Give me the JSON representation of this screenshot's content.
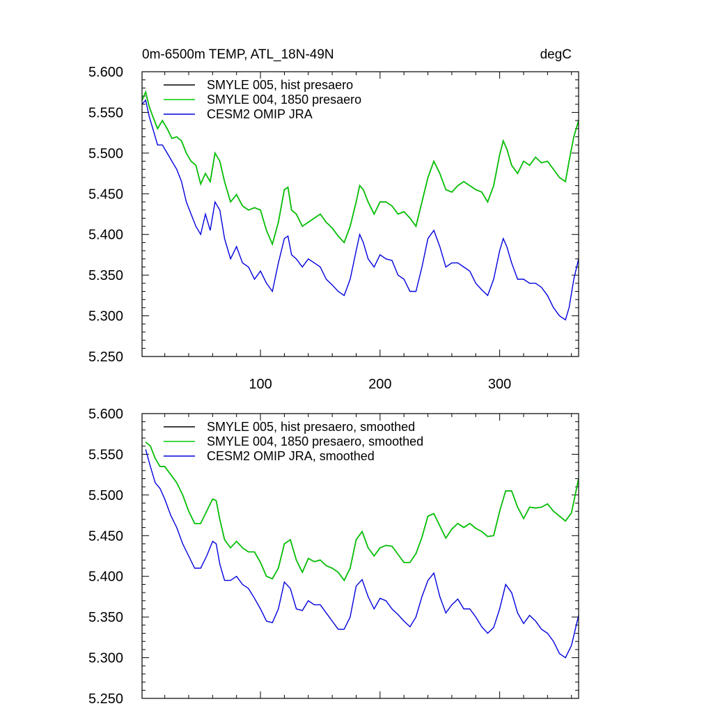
{
  "colors": {
    "hist": "#000000",
    "presaero1850": "#00cc00",
    "omip": "#0000dd"
  },
  "chart_data": [
    {
      "type": "line",
      "title": "0m-6500m TEMP, ATL_18N-49N",
      "units": "degC",
      "xlim": [
        1,
        366
      ],
      "ylim": [
        5.25,
        5.6
      ],
      "xticks": [
        100,
        200,
        300
      ],
      "xtick_labels": [
        "100",
        "200",
        "300"
      ],
      "yticks": [
        5.25,
        5.3,
        5.35,
        5.4,
        5.45,
        5.5,
        5.55,
        5.6
      ],
      "ytick_labels": [
        "5.250",
        "5.300",
        "5.350",
        "5.400",
        "5.450",
        "5.500",
        "5.550",
        "5.600"
      ],
      "legend_position": "top-left",
      "series": [
        {
          "name": "SMYLE 005, hist presaero",
          "color": "#000000",
          "x": [
            1,
            4,
            7,
            10,
            14,
            18,
            22,
            26,
            30,
            34,
            38,
            42,
            46,
            50,
            54,
            58,
            62,
            66,
            70,
            75,
            80,
            85,
            90,
            95,
            100,
            105,
            110,
            115,
            120,
            123,
            126,
            130,
            135,
            140,
            145,
            150,
            155,
            160,
            165,
            170,
            175,
            180,
            183,
            186,
            190,
            195,
            200,
            205,
            210,
            215,
            220,
            225,
            230,
            235,
            240,
            245,
            250,
            255,
            260,
            265,
            270,
            275,
            280,
            285,
            290,
            295,
            300,
            303,
            306,
            310,
            315,
            320,
            325,
            330,
            335,
            340,
            345,
            350,
            355,
            358,
            362,
            366
          ],
          "values": [
            5.565,
            5.575,
            5.557,
            5.545,
            5.53,
            5.54,
            5.53,
            5.518,
            5.52,
            5.515,
            5.5,
            5.49,
            5.485,
            5.462,
            5.475,
            5.465,
            5.5,
            5.49,
            5.465,
            5.44,
            5.449,
            5.435,
            5.43,
            5.433,
            5.43,
            5.405,
            5.388,
            5.415,
            5.455,
            5.458,
            5.43,
            5.425,
            5.41,
            5.415,
            5.42,
            5.425,
            5.415,
            5.408,
            5.398,
            5.39,
            5.41,
            5.44,
            5.46,
            5.455,
            5.44,
            5.425,
            5.44,
            5.44,
            5.435,
            5.425,
            5.428,
            5.42,
            5.41,
            5.44,
            5.47,
            5.49,
            5.475,
            5.455,
            5.452,
            5.46,
            5.465,
            5.46,
            5.455,
            5.452,
            5.44,
            5.46,
            5.498,
            5.515,
            5.505,
            5.485,
            5.475,
            5.49,
            5.485,
            5.495,
            5.488,
            5.49,
            5.48,
            5.47,
            5.465,
            5.49,
            5.52,
            5.54
          ]
        },
        {
          "name": "SMYLE 004, 1850 presaero",
          "color": "#00cc00",
          "x": [
            1,
            4,
            7,
            10,
            14,
            18,
            22,
            26,
            30,
            34,
            38,
            42,
            46,
            50,
            54,
            58,
            62,
            66,
            70,
            75,
            80,
            85,
            90,
            95,
            100,
            105,
            110,
            115,
            120,
            123,
            126,
            130,
            135,
            140,
            145,
            150,
            155,
            160,
            165,
            170,
            175,
            180,
            183,
            186,
            190,
            195,
            200,
            205,
            210,
            215,
            220,
            225,
            230,
            235,
            240,
            245,
            250,
            255,
            260,
            265,
            270,
            275,
            280,
            285,
            290,
            295,
            300,
            303,
            306,
            310,
            315,
            320,
            325,
            330,
            335,
            340,
            345,
            350,
            355,
            358,
            362,
            366
          ],
          "values": [
            5.565,
            5.575,
            5.557,
            5.545,
            5.53,
            5.54,
            5.53,
            5.518,
            5.52,
            5.515,
            5.5,
            5.49,
            5.485,
            5.462,
            5.475,
            5.465,
            5.5,
            5.49,
            5.465,
            5.44,
            5.449,
            5.435,
            5.43,
            5.433,
            5.43,
            5.405,
            5.388,
            5.415,
            5.455,
            5.458,
            5.43,
            5.425,
            5.41,
            5.415,
            5.42,
            5.425,
            5.415,
            5.408,
            5.398,
            5.39,
            5.41,
            5.44,
            5.46,
            5.455,
            5.44,
            5.425,
            5.44,
            5.44,
            5.435,
            5.425,
            5.428,
            5.42,
            5.41,
            5.44,
            5.47,
            5.49,
            5.475,
            5.455,
            5.452,
            5.46,
            5.465,
            5.46,
            5.455,
            5.452,
            5.44,
            5.46,
            5.498,
            5.515,
            5.505,
            5.485,
            5.475,
            5.49,
            5.485,
            5.495,
            5.488,
            5.49,
            5.48,
            5.47,
            5.465,
            5.49,
            5.52,
            5.54
          ]
        },
        {
          "name": "CESM2 OMIP JRA",
          "color": "#0000dd",
          "x": [
            1,
            4,
            7,
            10,
            14,
            18,
            22,
            26,
            30,
            34,
            38,
            42,
            46,
            50,
            54,
            58,
            62,
            66,
            70,
            75,
            80,
            85,
            90,
            95,
            100,
            105,
            110,
            115,
            120,
            123,
            126,
            130,
            135,
            140,
            145,
            150,
            155,
            160,
            165,
            170,
            175,
            180,
            183,
            186,
            190,
            195,
            200,
            205,
            210,
            215,
            220,
            225,
            230,
            235,
            240,
            245,
            250,
            255,
            260,
            265,
            270,
            275,
            280,
            285,
            290,
            295,
            300,
            303,
            306,
            310,
            315,
            320,
            325,
            330,
            335,
            340,
            345,
            350,
            355,
            358,
            362,
            366
          ],
          "values": [
            5.56,
            5.565,
            5.545,
            5.53,
            5.51,
            5.51,
            5.5,
            5.49,
            5.48,
            5.465,
            5.44,
            5.425,
            5.41,
            5.4,
            5.425,
            5.405,
            5.44,
            5.43,
            5.395,
            5.37,
            5.385,
            5.365,
            5.36,
            5.345,
            5.355,
            5.34,
            5.33,
            5.365,
            5.395,
            5.398,
            5.375,
            5.37,
            5.36,
            5.37,
            5.365,
            5.36,
            5.345,
            5.338,
            5.33,
            5.325,
            5.345,
            5.38,
            5.4,
            5.39,
            5.37,
            5.36,
            5.375,
            5.37,
            5.368,
            5.35,
            5.345,
            5.33,
            5.33,
            5.36,
            5.395,
            5.405,
            5.385,
            5.36,
            5.365,
            5.365,
            5.36,
            5.355,
            5.34,
            5.332,
            5.325,
            5.345,
            5.38,
            5.395,
            5.385,
            5.365,
            5.345,
            5.345,
            5.34,
            5.34,
            5.335,
            5.325,
            5.31,
            5.3,
            5.295,
            5.31,
            5.345,
            5.37
          ]
        }
      ]
    },
    {
      "type": "line",
      "title": "",
      "units": "",
      "xlim": [
        1,
        366
      ],
      "ylim": [
        5.25,
        5.6
      ],
      "xticks": [
        100,
        200,
        300
      ],
      "xtick_labels": [],
      "yticks": [
        5.25,
        5.3,
        5.35,
        5.4,
        5.45,
        5.5,
        5.55,
        5.6
      ],
      "ytick_labels": [
        "5.250",
        "5.300",
        "5.350",
        "5.400",
        "5.450",
        "5.500",
        "5.550",
        "5.600"
      ],
      "legend_position": "top-left",
      "series": [
        {
          "name": "SMYLE 005, hist presaero, smoothed",
          "color": "#000000",
          "x": [
            4,
            8,
            12,
            16,
            20,
            25,
            30,
            35,
            40,
            45,
            50,
            55,
            60,
            63,
            66,
            70,
            75,
            80,
            85,
            90,
            95,
            100,
            105,
            110,
            115,
            120,
            125,
            130,
            135,
            140,
            145,
            150,
            155,
            160,
            165,
            170,
            175,
            180,
            185,
            190,
            195,
            200,
            205,
            210,
            215,
            220,
            225,
            230,
            235,
            240,
            245,
            250,
            255,
            260,
            265,
            270,
            275,
            280,
            285,
            290,
            295,
            300,
            305,
            310,
            315,
            320,
            325,
            330,
            335,
            340,
            345,
            350,
            355,
            360,
            366
          ],
          "values": [
            5.565,
            5.56,
            5.545,
            5.535,
            5.535,
            5.525,
            5.515,
            5.5,
            5.48,
            5.465,
            5.465,
            5.48,
            5.495,
            5.493,
            5.47,
            5.445,
            5.435,
            5.443,
            5.435,
            5.43,
            5.43,
            5.417,
            5.4,
            5.397,
            5.41,
            5.44,
            5.445,
            5.42,
            5.405,
            5.422,
            5.418,
            5.42,
            5.413,
            5.41,
            5.405,
            5.395,
            5.41,
            5.445,
            5.455,
            5.435,
            5.425,
            5.435,
            5.438,
            5.437,
            5.427,
            5.417,
            5.417,
            5.428,
            5.448,
            5.474,
            5.477,
            5.462,
            5.447,
            5.458,
            5.465,
            5.46,
            5.465,
            5.459,
            5.455,
            5.449,
            5.45,
            5.48,
            5.505,
            5.505,
            5.485,
            5.471,
            5.485,
            5.484,
            5.485,
            5.489,
            5.48,
            5.474,
            5.468,
            5.478,
            5.52
          ]
        },
        {
          "name": "SMYLE 004, 1850 presaero, smoothed",
          "color": "#00cc00",
          "x": [
            4,
            8,
            12,
            16,
            20,
            25,
            30,
            35,
            40,
            45,
            50,
            55,
            60,
            63,
            66,
            70,
            75,
            80,
            85,
            90,
            95,
            100,
            105,
            110,
            115,
            120,
            125,
            130,
            135,
            140,
            145,
            150,
            155,
            160,
            165,
            170,
            175,
            180,
            185,
            190,
            195,
            200,
            205,
            210,
            215,
            220,
            225,
            230,
            235,
            240,
            245,
            250,
            255,
            260,
            265,
            270,
            275,
            280,
            285,
            290,
            295,
            300,
            305,
            310,
            315,
            320,
            325,
            330,
            335,
            340,
            345,
            350,
            355,
            360,
            366
          ],
          "values": [
            5.565,
            5.56,
            5.545,
            5.535,
            5.535,
            5.525,
            5.515,
            5.5,
            5.48,
            5.465,
            5.465,
            5.48,
            5.495,
            5.493,
            5.47,
            5.445,
            5.435,
            5.443,
            5.435,
            5.43,
            5.43,
            5.417,
            5.4,
            5.397,
            5.41,
            5.44,
            5.445,
            5.42,
            5.405,
            5.422,
            5.418,
            5.42,
            5.413,
            5.41,
            5.405,
            5.395,
            5.41,
            5.445,
            5.455,
            5.435,
            5.425,
            5.435,
            5.438,
            5.437,
            5.427,
            5.417,
            5.417,
            5.428,
            5.448,
            5.474,
            5.477,
            5.462,
            5.447,
            5.458,
            5.465,
            5.46,
            5.465,
            5.459,
            5.455,
            5.449,
            5.45,
            5.48,
            5.505,
            5.505,
            5.485,
            5.471,
            5.485,
            5.484,
            5.485,
            5.489,
            5.48,
            5.474,
            5.468,
            5.478,
            5.52
          ]
        },
        {
          "name": "CESM2 OMIP JRA, smoothed",
          "color": "#0000dd",
          "x": [
            4,
            8,
            12,
            16,
            20,
            25,
            30,
            35,
            40,
            45,
            50,
            55,
            60,
            63,
            66,
            70,
            75,
            80,
            85,
            90,
            95,
            100,
            105,
            110,
            115,
            120,
            125,
            130,
            135,
            140,
            145,
            150,
            155,
            160,
            165,
            170,
            175,
            180,
            185,
            190,
            195,
            200,
            205,
            210,
            215,
            220,
            225,
            230,
            235,
            240,
            245,
            250,
            255,
            260,
            265,
            270,
            275,
            280,
            285,
            290,
            295,
            300,
            305,
            310,
            315,
            320,
            325,
            330,
            335,
            340,
            345,
            350,
            355,
            360,
            366
          ],
          "values": [
            5.556,
            5.535,
            5.515,
            5.508,
            5.495,
            5.475,
            5.46,
            5.44,
            5.425,
            5.41,
            5.41,
            5.425,
            5.443,
            5.44,
            5.415,
            5.395,
            5.395,
            5.4,
            5.39,
            5.385,
            5.373,
            5.36,
            5.345,
            5.343,
            5.36,
            5.393,
            5.385,
            5.36,
            5.358,
            5.37,
            5.365,
            5.365,
            5.355,
            5.345,
            5.335,
            5.335,
            5.35,
            5.388,
            5.396,
            5.375,
            5.36,
            5.373,
            5.37,
            5.36,
            5.353,
            5.345,
            5.338,
            5.35,
            5.375,
            5.395,
            5.404,
            5.375,
            5.355,
            5.365,
            5.372,
            5.36,
            5.36,
            5.35,
            5.338,
            5.33,
            5.337,
            5.36,
            5.39,
            5.38,
            5.355,
            5.342,
            5.352,
            5.345,
            5.335,
            5.33,
            5.32,
            5.305,
            5.3,
            5.315,
            5.352
          ]
        }
      ]
    }
  ]
}
